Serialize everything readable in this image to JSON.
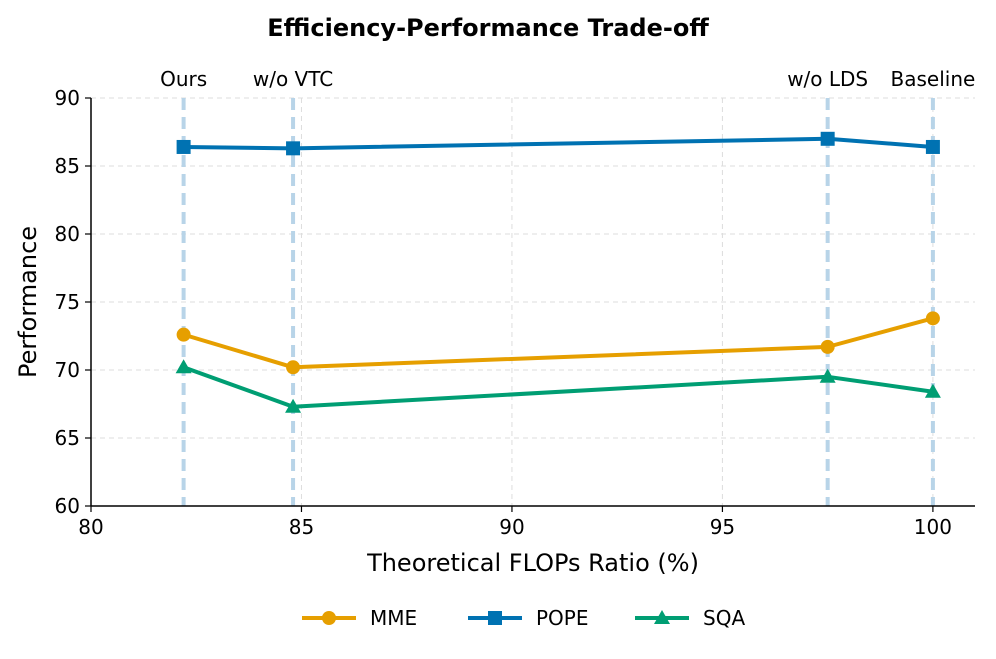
{
  "chart_data": {
    "type": "line",
    "title": "Efficiency-Performance Trade-off",
    "xlabel": "Theoretical FLOPs Ratio (%)",
    "ylabel": "Performance",
    "xlim": [
      80,
      101
    ],
    "ylim": [
      60,
      90
    ],
    "xticks": [
      80,
      85,
      90,
      95,
      100
    ],
    "yticks": [
      60,
      65,
      70,
      75,
      80,
      85,
      90
    ],
    "grid": true,
    "legend_position": "bottom-center",
    "x": [
      82.2,
      84.8,
      97.5,
      100
    ],
    "series": [
      {
        "name": "MME",
        "color": "#E69F00",
        "marker": "circle",
        "values": [
          72.6,
          70.2,
          71.7,
          73.8
        ]
      },
      {
        "name": "POPE",
        "color": "#0072B2",
        "marker": "square",
        "values": [
          86.4,
          86.3,
          87.0,
          86.4
        ]
      },
      {
        "name": "SQA",
        "color": "#009E73",
        "marker": "triangle",
        "values": [
          70.2,
          67.3,
          69.5,
          68.4
        ]
      }
    ],
    "reference_lines": [
      {
        "x": 82.2,
        "label": "Ours"
      },
      {
        "x": 84.8,
        "label": "w/o VTC"
      },
      {
        "x": 97.5,
        "label": "w/o LDS"
      },
      {
        "x": 100,
        "label": "Baseline"
      }
    ],
    "reference_color": "#B8D4E8"
  }
}
